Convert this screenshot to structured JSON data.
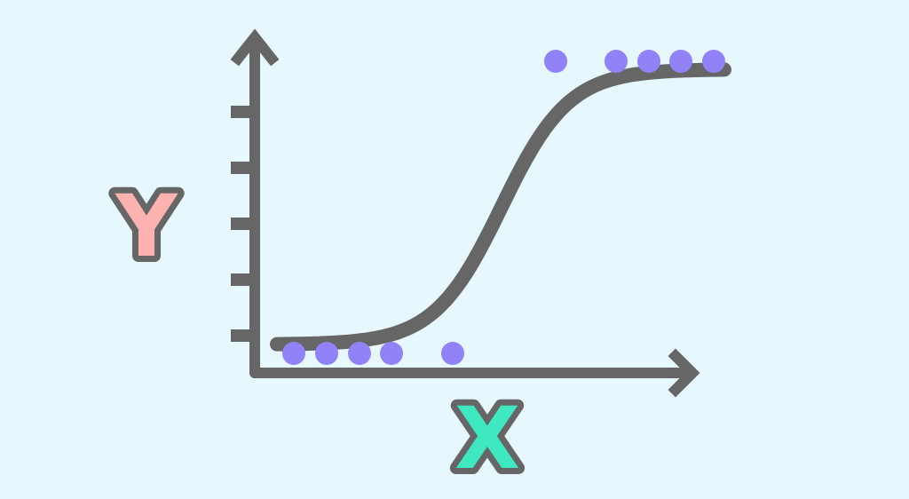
{
  "diagram": {
    "y_label": "Y",
    "x_label": "X",
    "colors": {
      "background": "#e6f7fe",
      "axis": "#666666",
      "curve": "#666666",
      "points": "#9282f8",
      "y_label": "#ffb3b0",
      "x_label": "#3ee8c0"
    },
    "y_tick_count": 5,
    "curve_shape": "sigmoid",
    "low_points_count": 5,
    "high_points_count": 5
  }
}
